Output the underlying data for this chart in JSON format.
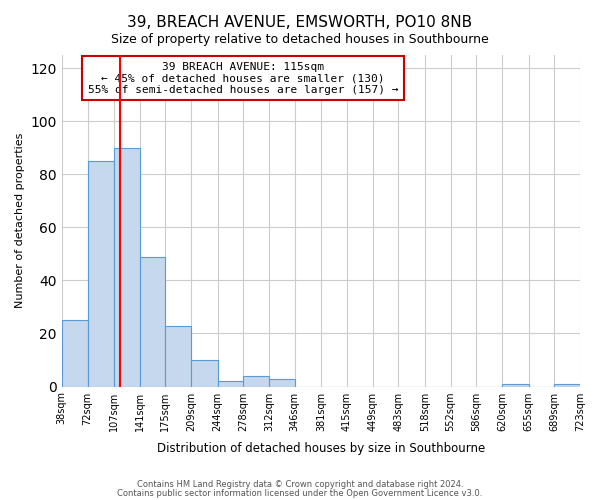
{
  "title": "39, BREACH AVENUE, EMSWORTH, PO10 8NB",
  "subtitle": "Size of property relative to detached houses in Southbourne",
  "xlabel": "Distribution of detached houses by size in Southbourne",
  "ylabel": "Number of detached properties",
  "bin_edges": [
    38,
    72,
    107,
    141,
    175,
    209,
    244,
    278,
    312,
    346,
    381,
    415,
    449,
    483,
    518,
    552,
    586,
    620,
    655,
    689,
    723
  ],
  "bar_heights": [
    25,
    85,
    90,
    49,
    23,
    10,
    2,
    4,
    3,
    0,
    0,
    0,
    0,
    0,
    0,
    0,
    0,
    1,
    0,
    1
  ],
  "bar_color": "#c5d8ed",
  "bar_edge_color": "#5b9bd5",
  "red_line_x": 115,
  "ylim": [
    0,
    125
  ],
  "yticks": [
    0,
    20,
    40,
    60,
    80,
    100,
    120
  ],
  "annotation_title": "39 BREACH AVENUE: 115sqm",
  "annotation_line1": "← 45% of detached houses are smaller (130)",
  "annotation_line2": "55% of semi-detached houses are larger (157) →",
  "annotation_box_color": "#ffffff",
  "annotation_border_color": "#cc0000",
  "footer_line1": "Contains HM Land Registry data © Crown copyright and database right 2024.",
  "footer_line2": "Contains public sector information licensed under the Open Government Licence v3.0.",
  "background_color": "#ffffff",
  "grid_color": "#cccccc"
}
